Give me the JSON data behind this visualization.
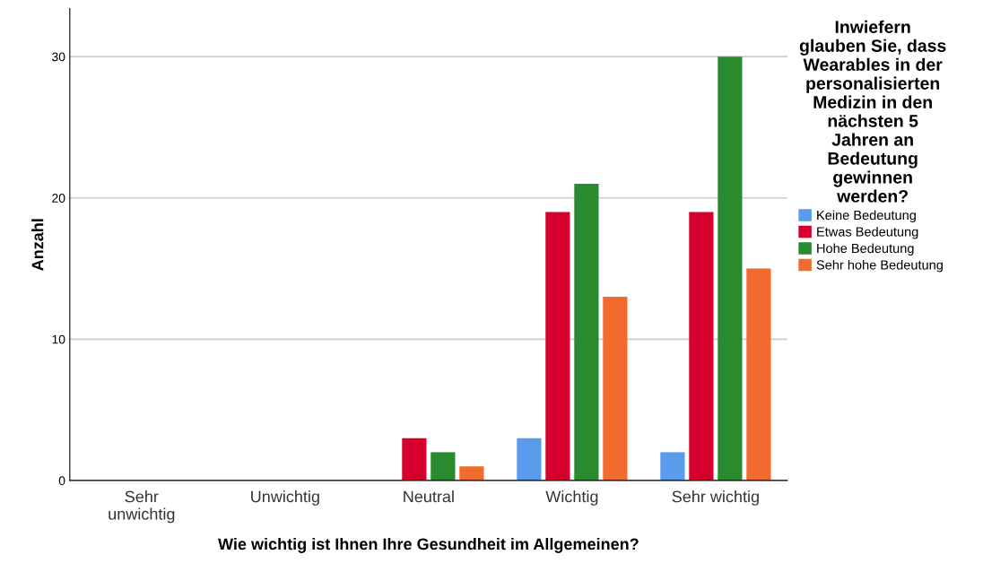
{
  "chart_data": {
    "type": "bar",
    "xlabel": "Wie wichtig ist Ihnen Ihre Gesundheit im Allgemeinen?",
    "ylabel": "Anzahl",
    "legend_title": "Inwiefern\nglauben Sie, dass\nWearables in der\npersonalisierten\nMedizin in den\nnächsten 5\nJahren an\nBedeutung\ngewinnen\nwerden?",
    "categories": [
      "Sehr\nunwichtig",
      "Unwichtig",
      "Neutral",
      "Wichtig",
      "Sehr wichtig"
    ],
    "series": [
      {
        "name": "Keine Bedeutung",
        "color": "#5b9bec",
        "values": [
          null,
          null,
          null,
          3,
          2
        ]
      },
      {
        "name": "Etwas Bedeutung",
        "color": "#d6002f",
        "values": [
          null,
          null,
          3,
          19,
          19
        ]
      },
      {
        "name": "Hohe Bedeutung",
        "color": "#2a8a2f",
        "values": [
          null,
          null,
          2,
          21,
          30
        ]
      },
      {
        "name": "Sehr hohe Bedeutung",
        "color": "#f26b2e",
        "values": [
          null,
          null,
          1,
          13,
          15
        ]
      }
    ],
    "ylim": [
      0,
      33.4
    ],
    "yticks": [
      0,
      10,
      20,
      30
    ],
    "grid": "y",
    "legend": "right"
  }
}
